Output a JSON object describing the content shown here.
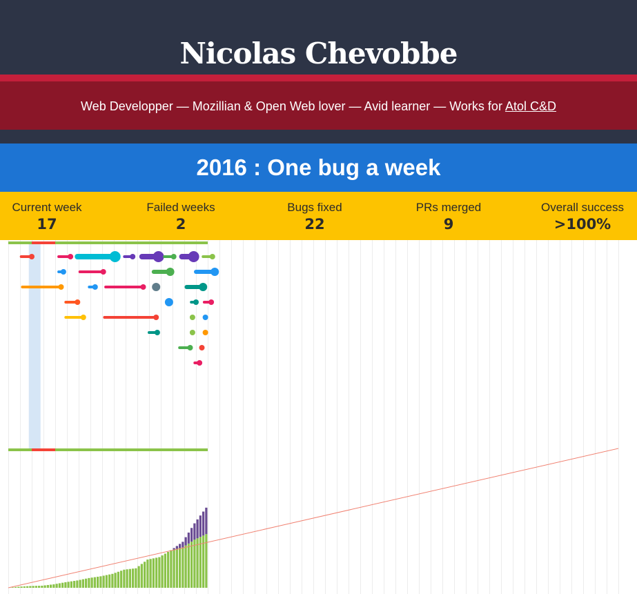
{
  "header": {
    "title": "Nicolas Chevobbe"
  },
  "tagline": {
    "text": "Web Developper — Mozillian & Open Web lover — Avid learner — Works for ",
    "link": "Atol C&D"
  },
  "section": {
    "title": "2016 : One bug a week"
  },
  "stats": [
    {
      "label": "Current week",
      "value": "17"
    },
    {
      "label": "Failed weeks",
      "value": "2"
    },
    {
      "label": "Bugs fixed",
      "value": "22"
    },
    {
      "label": "PRs merged",
      "value": "9"
    },
    {
      "label": "Overall success",
      "value": ">100%"
    }
  ],
  "colors": {
    "header": "#2d3446",
    "stripe": "#c41f3b",
    "tagline_bg": "#8a1628",
    "banner": "#1d74d3",
    "stats_bg": "#fdc300",
    "success": "#8bc34a",
    "failed": "#f44336",
    "current_week": "#d6e6f6",
    "target": "#f08070",
    "extra": "#6a4c93"
  },
  "chart_data": {
    "type": "timeline+bar",
    "weeks_total": 52,
    "current_week": 17,
    "week_status": [
      "ok",
      "ok",
      "failed",
      "failed",
      "ok",
      "ok",
      "ok",
      "ok",
      "ok",
      "ok",
      "ok",
      "ok",
      "ok",
      "ok",
      "ok",
      "ok",
      "ok"
    ],
    "timeline_tasks": [
      {
        "start": 1.1,
        "end": 2.0,
        "row": 0,
        "color": "#f44336",
        "size": 4
      },
      {
        "start": 4.3,
        "end": 5.3,
        "row": 0,
        "color": "#e91e63",
        "size": 4
      },
      {
        "start": 5.9,
        "end": 9.1,
        "row": 0,
        "color": "#00bcd4",
        "size": 8
      },
      {
        "start": 9.9,
        "end": 10.6,
        "row": 0,
        "color": "#673ab7",
        "size": 4
      },
      {
        "start": 11.4,
        "end": 12.8,
        "row": 0,
        "color": "#673ab7",
        "size": 8
      },
      {
        "start": 13.3,
        "end": 14.1,
        "row": 0,
        "color": "#4caf50",
        "size": 4
      },
      {
        "start": 14.8,
        "end": 15.8,
        "row": 0,
        "color": "#673ab7",
        "size": 8
      },
      {
        "start": 16.6,
        "end": 17.4,
        "row": 0,
        "color": "#8bc34a",
        "size": 4
      },
      {
        "start": 4.3,
        "end": 4.7,
        "row": 1,
        "color": "#2196f3",
        "size": 4
      },
      {
        "start": 6.1,
        "end": 8.1,
        "row": 1,
        "color": "#e91e63",
        "size": 4
      },
      {
        "start": 12.4,
        "end": 13.8,
        "row": 1,
        "color": "#4caf50",
        "size": 6
      },
      {
        "start": 16.0,
        "end": 17.6,
        "row": 1,
        "color": "#2196f3",
        "size": 6
      },
      {
        "start": 1.2,
        "end": 4.5,
        "row": 2,
        "color": "#ff9800",
        "size": 4
      },
      {
        "start": 6.9,
        "end": 7.4,
        "row": 2,
        "color": "#2196f3",
        "size": 4
      },
      {
        "start": 8.3,
        "end": 11.5,
        "row": 2,
        "color": "#e91e63",
        "size": 4
      },
      {
        "start": 12.6,
        "end": 12.6,
        "row": 2,
        "color": "#607d8b",
        "size": 6
      },
      {
        "start": 15.2,
        "end": 16.6,
        "row": 2,
        "color": "#009688",
        "size": 6
      },
      {
        "start": 4.9,
        "end": 5.9,
        "row": 3,
        "color": "#ff5722",
        "size": 4
      },
      {
        "start": 13.7,
        "end": 13.7,
        "row": 3,
        "color": "#2196f3",
        "size": 6
      },
      {
        "start": 15.6,
        "end": 16.0,
        "row": 3,
        "color": "#009688",
        "size": 4
      },
      {
        "start": 16.7,
        "end": 17.3,
        "row": 3,
        "color": "#e91e63",
        "size": 4
      },
      {
        "start": 4.9,
        "end": 6.4,
        "row": 4,
        "color": "#ffc107",
        "size": 4
      },
      {
        "start": 8.2,
        "end": 12.6,
        "row": 4,
        "color": "#f44336",
        "size": 4
      },
      {
        "start": 15.7,
        "end": 15.7,
        "row": 4,
        "color": "#8bc34a",
        "size": 4
      },
      {
        "start": 16.8,
        "end": 16.8,
        "row": 4,
        "color": "#2196f3",
        "size": 4
      },
      {
        "start": 12.0,
        "end": 12.7,
        "row": 5,
        "color": "#009688",
        "size": 4
      },
      {
        "start": 15.7,
        "end": 15.7,
        "row": 5,
        "color": "#8bc34a",
        "size": 4
      },
      {
        "start": 16.8,
        "end": 16.8,
        "row": 5,
        "color": "#ff9800",
        "size": 4
      },
      {
        "start": 14.6,
        "end": 15.5,
        "row": 6,
        "color": "#4caf50",
        "size": 4
      },
      {
        "start": 16.5,
        "end": 16.5,
        "row": 6,
        "color": "#f44336",
        "size": 4
      },
      {
        "start": 15.9,
        "end": 16.3,
        "row": 7,
        "color": "#e91e63",
        "size": 4
      }
    ],
    "cumulative_completed": [
      0.3,
      0.5,
      0.6,
      1,
      1.6,
      2.1,
      2.8,
      3.3,
      4,
      5.2,
      5.6,
      8.1,
      8.8,
      10.8,
      11.6,
      13.8,
      15.4
    ],
    "cumulative_extra": [
      0,
      0,
      0,
      0,
      0,
      0,
      0,
      0,
      0,
      0,
      0,
      0,
      0,
      0,
      1.6,
      4.7,
      7.6
    ],
    "target_line": {
      "start": [
        0,
        0
      ],
      "end": [
        52,
        40
      ]
    },
    "bar_ylim": [
      0,
      40
    ]
  }
}
